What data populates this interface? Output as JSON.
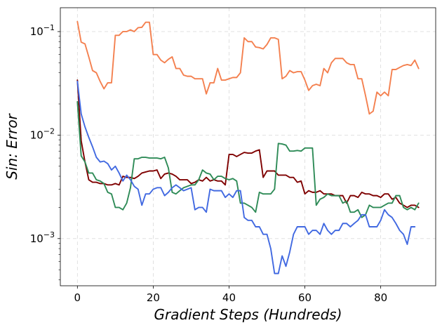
{
  "chart_data": {
    "type": "line",
    "title": "",
    "xlabel": "Gradient Steps (Hundreds)",
    "ylabel": "Sin: Error",
    "xlim": [
      -4.5,
      94.5
    ],
    "ylim": [
      0.00035,
      0.17
    ],
    "yscale": "log",
    "x_ticks": [
      0,
      20,
      40,
      60,
      80
    ],
    "x_tick_labels": [
      "0",
      "20",
      "40",
      "60",
      "80"
    ],
    "y_ticks": [
      0.001,
      0.01,
      0.1
    ],
    "y_tick_labels": [
      {
        "base": "10",
        "exp": "−3"
      },
      {
        "base": "10",
        "exp": "−2"
      },
      {
        "base": "10",
        "exp": "−1"
      }
    ],
    "grid": true,
    "legend": false,
    "series": [
      {
        "color": "#f4804f",
        "x": [
          0,
          1,
          2,
          3,
          4,
          5,
          6,
          7,
          8,
          9,
          10,
          11,
          12,
          13,
          14,
          15,
          16,
          17,
          18,
          19,
          20,
          21,
          22,
          23,
          24,
          25,
          26,
          27,
          28,
          29,
          30,
          31,
          32,
          33,
          34,
          35,
          36,
          37,
          38,
          39,
          40,
          41,
          42,
          43,
          44,
          45,
          46,
          47,
          48,
          49,
          50,
          51,
          52,
          53,
          54,
          55,
          56,
          57,
          58,
          59,
          60,
          61,
          62,
          63,
          64,
          65,
          66,
          67,
          68,
          69,
          70,
          71,
          72,
          73,
          74,
          75,
          76,
          77,
          78,
          79,
          80,
          81,
          82,
          83,
          84,
          85,
          86,
          87,
          88,
          89,
          90
        ],
        "y": [
          0.125,
          0.079,
          0.076,
          0.057,
          0.042,
          0.04,
          0.033,
          0.028,
          0.032,
          0.032,
          0.092,
          0.092,
          0.1,
          0.1,
          0.104,
          0.1,
          0.109,
          0.11,
          0.123,
          0.123,
          0.06,
          0.06,
          0.053,
          0.05,
          0.054,
          0.057,
          0.044,
          0.044,
          0.038,
          0.037,
          0.037,
          0.035,
          0.035,
          0.035,
          0.025,
          0.032,
          0.032,
          0.044,
          0.034,
          0.034,
          0.035,
          0.036,
          0.036,
          0.04,
          0.087,
          0.08,
          0.08,
          0.071,
          0.07,
          0.068,
          0.075,
          0.087,
          0.087,
          0.084,
          0.035,
          0.037,
          0.042,
          0.04,
          0.041,
          0.041,
          0.034,
          0.027,
          0.03,
          0.031,
          0.03,
          0.044,
          0.04,
          0.05,
          0.055,
          0.055,
          0.055,
          0.05,
          0.048,
          0.048,
          0.035,
          0.035,
          0.024,
          0.016,
          0.017,
          0.026,
          0.024,
          0.026,
          0.024,
          0.043,
          0.043,
          0.045,
          0.047,
          0.048,
          0.047,
          0.053,
          0.044
        ]
      },
      {
        "color": "#7f0000",
        "x": [
          0,
          1,
          2,
          3,
          4,
          5,
          6,
          7,
          8,
          9,
          10,
          11,
          12,
          13,
          14,
          15,
          16,
          17,
          18,
          19,
          20,
          21,
          22,
          23,
          24,
          25,
          26,
          27,
          28,
          29,
          30,
          31,
          32,
          33,
          34,
          35,
          36,
          37,
          38,
          39,
          40,
          41,
          42,
          43,
          44,
          45,
          46,
          47,
          48,
          49,
          50,
          51,
          52,
          53,
          54,
          55,
          56,
          57,
          58,
          59,
          60,
          61,
          62,
          63,
          64,
          65,
          66,
          67,
          68,
          69,
          70,
          71,
          72,
          73,
          74,
          75,
          76,
          77,
          78,
          79,
          80,
          81,
          82,
          83,
          84,
          85,
          86,
          87,
          88,
          89,
          90
        ],
        "y": [
          0.034,
          0.0088,
          0.0055,
          0.0037,
          0.0035,
          0.0035,
          0.0034,
          0.0034,
          0.0033,
          0.0033,
          0.0034,
          0.0033,
          0.004,
          0.0039,
          0.0039,
          0.0038,
          0.004,
          0.0043,
          0.0044,
          0.0045,
          0.0045,
          0.0046,
          0.0038,
          0.0042,
          0.0043,
          0.0042,
          0.004,
          0.0037,
          0.0037,
          0.0037,
          0.0034,
          0.0035,
          0.0037,
          0.0036,
          0.0039,
          0.0036,
          0.0037,
          0.0036,
          0.0036,
          0.0033,
          0.0065,
          0.0065,
          0.0062,
          0.0065,
          0.0068,
          0.0067,
          0.0067,
          0.007,
          0.0072,
          0.0039,
          0.0045,
          0.0045,
          0.0045,
          0.0041,
          0.0041,
          0.0041,
          0.0039,
          0.0039,
          0.0035,
          0.0036,
          0.0027,
          0.0029,
          0.0028,
          0.0028,
          0.0029,
          0.0027,
          0.0027,
          0.0027,
          0.0026,
          0.0026,
          0.0026,
          0.0022,
          0.0026,
          0.0026,
          0.0025,
          0.0028,
          0.0027,
          0.0027,
          0.0026,
          0.0026,
          0.0025,
          0.0027,
          0.0027,
          0.0024,
          0.0025,
          0.0022,
          0.0021,
          0.002,
          0.0021,
          0.0021,
          0.002
        ]
      },
      {
        "color": "#2e8b57",
        "x": [
          0,
          1,
          2,
          3,
          4,
          5,
          6,
          7,
          8,
          9,
          10,
          11,
          12,
          13,
          14,
          15,
          16,
          17,
          18,
          19,
          20,
          21,
          22,
          23,
          24,
          25,
          26,
          27,
          28,
          29,
          30,
          31,
          32,
          33,
          34,
          35,
          36,
          37,
          38,
          39,
          40,
          41,
          42,
          43,
          44,
          45,
          46,
          47,
          48,
          49,
          50,
          51,
          52,
          53,
          54,
          55,
          56,
          57,
          58,
          59,
          60,
          61,
          62,
          63,
          64,
          65,
          66,
          67,
          68,
          69,
          70,
          71,
          72,
          73,
          74,
          75,
          76,
          77,
          78,
          79,
          80,
          81,
          82,
          83,
          84,
          85,
          86,
          87,
          88,
          89,
          90
        ],
        "y": [
          0.021,
          0.0063,
          0.0055,
          0.0043,
          0.0043,
          0.0037,
          0.0036,
          0.0034,
          0.0028,
          0.0027,
          0.002,
          0.002,
          0.0019,
          0.0022,
          0.0031,
          0.0059,
          0.0059,
          0.0061,
          0.0061,
          0.006,
          0.006,
          0.006,
          0.0059,
          0.0061,
          0.0048,
          0.0028,
          0.0027,
          0.0029,
          0.0031,
          0.0032,
          0.0033,
          0.0033,
          0.0037,
          0.0046,
          0.0043,
          0.0042,
          0.0037,
          0.004,
          0.004,
          0.0038,
          0.0037,
          0.0038,
          0.0036,
          0.0022,
          0.0022,
          0.0021,
          0.002,
          0.0018,
          0.0028,
          0.0027,
          0.0027,
          0.0027,
          0.003,
          0.0083,
          0.0082,
          0.008,
          0.007,
          0.007,
          0.0071,
          0.007,
          0.0075,
          0.0075,
          0.0075,
          0.0021,
          0.0024,
          0.0025,
          0.0027,
          0.0026,
          0.0026,
          0.0026,
          0.0022,
          0.0023,
          0.0018,
          0.0018,
          0.0019,
          0.0016,
          0.0017,
          0.0021,
          0.002,
          0.002,
          0.002,
          0.0021,
          0.0022,
          0.0022,
          0.0026,
          0.0026,
          0.002,
          0.0019,
          0.002,
          0.0019,
          0.0022
        ]
      },
      {
        "color": "#4169e1",
        "x": [
          0,
          1,
          2,
          3,
          4,
          5,
          6,
          7,
          8,
          9,
          10,
          11,
          12,
          13,
          14,
          15,
          16,
          17,
          18,
          19,
          20,
          21,
          22,
          23,
          24,
          25,
          26,
          27,
          28,
          29,
          30,
          31,
          32,
          33,
          34,
          35,
          36,
          37,
          38,
          39,
          40,
          41,
          42,
          43,
          44,
          45,
          46,
          47,
          48,
          49,
          50,
          51,
          52,
          53,
          54,
          55,
          56,
          57,
          58,
          59,
          60,
          61,
          62,
          63,
          64,
          65,
          66,
          67,
          68,
          69,
          70,
          71,
          72,
          73,
          74,
          75,
          76,
          77,
          78,
          79,
          80,
          81,
          82,
          83,
          84,
          85,
          86,
          87,
          88,
          89
        ],
        "y": [
          0.033,
          0.016,
          0.012,
          0.0095,
          0.0077,
          0.0061,
          0.0055,
          0.0056,
          0.0053,
          0.0046,
          0.005,
          0.0043,
          0.0036,
          0.0041,
          0.0037,
          0.0032,
          0.003,
          0.0021,
          0.0027,
          0.0027,
          0.003,
          0.0031,
          0.0031,
          0.0026,
          0.0028,
          0.0031,
          0.0033,
          0.0031,
          0.0029,
          0.003,
          0.0031,
          0.0019,
          0.002,
          0.002,
          0.0018,
          0.003,
          0.0029,
          0.0029,
          0.0029,
          0.0025,
          0.0027,
          0.0025,
          0.0029,
          0.0029,
          0.0016,
          0.0015,
          0.0015,
          0.0013,
          0.0013,
          0.0011,
          0.0011,
          0.0008,
          0.00046,
          0.00046,
          0.00068,
          0.00054,
          0.00074,
          0.0011,
          0.0013,
          0.0013,
          0.0013,
          0.0011,
          0.0012,
          0.0012,
          0.0011,
          0.0014,
          0.0012,
          0.0011,
          0.0012,
          0.0012,
          0.0014,
          0.0014,
          0.0013,
          0.0014,
          0.0015,
          0.0017,
          0.0017,
          0.0013,
          0.0013,
          0.0013,
          0.0015,
          0.0019,
          0.0017,
          0.0016,
          0.0014,
          0.0012,
          0.0011,
          0.00088,
          0.0013,
          0.0013
        ]
      }
    ]
  }
}
